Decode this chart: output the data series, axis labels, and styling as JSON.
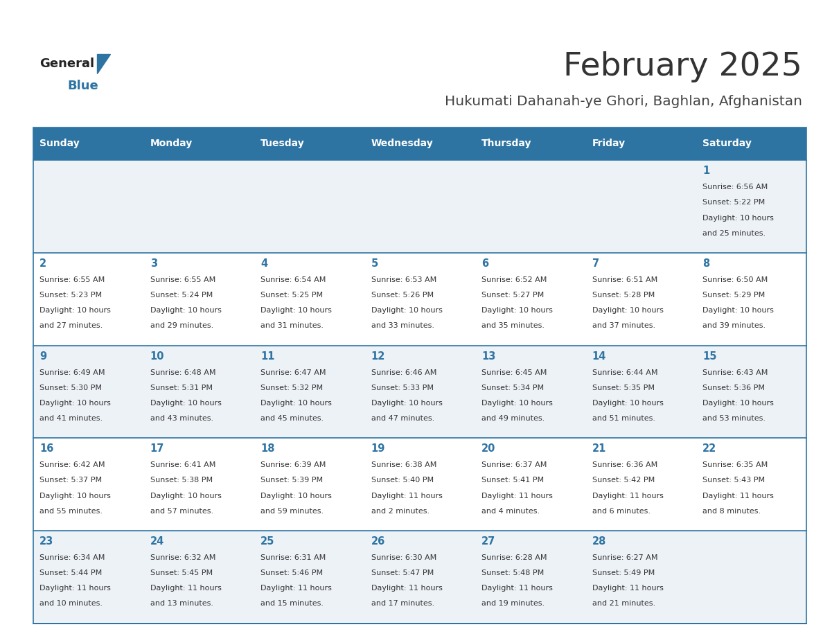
{
  "title": "February 2025",
  "subtitle": "Hukumati Dahanah-ye Ghori, Baghlan, Afghanistan",
  "days_of_week": [
    "Sunday",
    "Monday",
    "Tuesday",
    "Wednesday",
    "Thursday",
    "Friday",
    "Saturday"
  ],
  "header_bg": "#2e74a3",
  "header_text": "#ffffff",
  "row_bg_odd": "#edf2f7",
  "row_bg_even": "#ffffff",
  "border_color": "#2e74a3",
  "day_num_color": "#2e74a3",
  "text_color": "#333333",
  "title_color": "#333333",
  "subtitle_color": "#444444",
  "logo_general_color": "#222222",
  "logo_blue_color": "#2e74a3",
  "logo_triangle_color": "#2e74a3",
  "calendar_data": [
    [
      {
        "day": "",
        "sunrise": "",
        "sunset": "",
        "daylight": ""
      },
      {
        "day": "",
        "sunrise": "",
        "sunset": "",
        "daylight": ""
      },
      {
        "day": "",
        "sunrise": "",
        "sunset": "",
        "daylight": ""
      },
      {
        "day": "",
        "sunrise": "",
        "sunset": "",
        "daylight": ""
      },
      {
        "day": "",
        "sunrise": "",
        "sunset": "",
        "daylight": ""
      },
      {
        "day": "",
        "sunrise": "",
        "sunset": "",
        "daylight": ""
      },
      {
        "day": "1",
        "sunrise": "6:56 AM",
        "sunset": "5:22 PM",
        "daylight": "10 hours and 25 minutes."
      }
    ],
    [
      {
        "day": "2",
        "sunrise": "6:55 AM",
        "sunset": "5:23 PM",
        "daylight": "10 hours and 27 minutes."
      },
      {
        "day": "3",
        "sunrise": "6:55 AM",
        "sunset": "5:24 PM",
        "daylight": "10 hours and 29 minutes."
      },
      {
        "day": "4",
        "sunrise": "6:54 AM",
        "sunset": "5:25 PM",
        "daylight": "10 hours and 31 minutes."
      },
      {
        "day": "5",
        "sunrise": "6:53 AM",
        "sunset": "5:26 PM",
        "daylight": "10 hours and 33 minutes."
      },
      {
        "day": "6",
        "sunrise": "6:52 AM",
        "sunset": "5:27 PM",
        "daylight": "10 hours and 35 minutes."
      },
      {
        "day": "7",
        "sunrise": "6:51 AM",
        "sunset": "5:28 PM",
        "daylight": "10 hours and 37 minutes."
      },
      {
        "day": "8",
        "sunrise": "6:50 AM",
        "sunset": "5:29 PM",
        "daylight": "10 hours and 39 minutes."
      }
    ],
    [
      {
        "day": "9",
        "sunrise": "6:49 AM",
        "sunset": "5:30 PM",
        "daylight": "10 hours and 41 minutes."
      },
      {
        "day": "10",
        "sunrise": "6:48 AM",
        "sunset": "5:31 PM",
        "daylight": "10 hours and 43 minutes."
      },
      {
        "day": "11",
        "sunrise": "6:47 AM",
        "sunset": "5:32 PM",
        "daylight": "10 hours and 45 minutes."
      },
      {
        "day": "12",
        "sunrise": "6:46 AM",
        "sunset": "5:33 PM",
        "daylight": "10 hours and 47 minutes."
      },
      {
        "day": "13",
        "sunrise": "6:45 AM",
        "sunset": "5:34 PM",
        "daylight": "10 hours and 49 minutes."
      },
      {
        "day": "14",
        "sunrise": "6:44 AM",
        "sunset": "5:35 PM",
        "daylight": "10 hours and 51 minutes."
      },
      {
        "day": "15",
        "sunrise": "6:43 AM",
        "sunset": "5:36 PM",
        "daylight": "10 hours and 53 minutes."
      }
    ],
    [
      {
        "day": "16",
        "sunrise": "6:42 AM",
        "sunset": "5:37 PM",
        "daylight": "10 hours and 55 minutes."
      },
      {
        "day": "17",
        "sunrise": "6:41 AM",
        "sunset": "5:38 PM",
        "daylight": "10 hours and 57 minutes."
      },
      {
        "day": "18",
        "sunrise": "6:39 AM",
        "sunset": "5:39 PM",
        "daylight": "10 hours and 59 minutes."
      },
      {
        "day": "19",
        "sunrise": "6:38 AM",
        "sunset": "5:40 PM",
        "daylight": "11 hours and 2 minutes."
      },
      {
        "day": "20",
        "sunrise": "6:37 AM",
        "sunset": "5:41 PM",
        "daylight": "11 hours and 4 minutes."
      },
      {
        "day": "21",
        "sunrise": "6:36 AM",
        "sunset": "5:42 PM",
        "daylight": "11 hours and 6 minutes."
      },
      {
        "day": "22",
        "sunrise": "6:35 AM",
        "sunset": "5:43 PM",
        "daylight": "11 hours and 8 minutes."
      }
    ],
    [
      {
        "day": "23",
        "sunrise": "6:34 AM",
        "sunset": "5:44 PM",
        "daylight": "11 hours and 10 minutes."
      },
      {
        "day": "24",
        "sunrise": "6:32 AM",
        "sunset": "5:45 PM",
        "daylight": "11 hours and 13 minutes."
      },
      {
        "day": "25",
        "sunrise": "6:31 AM",
        "sunset": "5:46 PM",
        "daylight": "11 hours and 15 minutes."
      },
      {
        "day": "26",
        "sunrise": "6:30 AM",
        "sunset": "5:47 PM",
        "daylight": "11 hours and 17 minutes."
      },
      {
        "day": "27",
        "sunrise": "6:28 AM",
        "sunset": "5:48 PM",
        "daylight": "11 hours and 19 minutes."
      },
      {
        "day": "28",
        "sunrise": "6:27 AM",
        "sunset": "5:49 PM",
        "daylight": "11 hours and 21 minutes."
      },
      {
        "day": "",
        "sunrise": "",
        "sunset": "",
        "daylight": ""
      }
    ]
  ]
}
